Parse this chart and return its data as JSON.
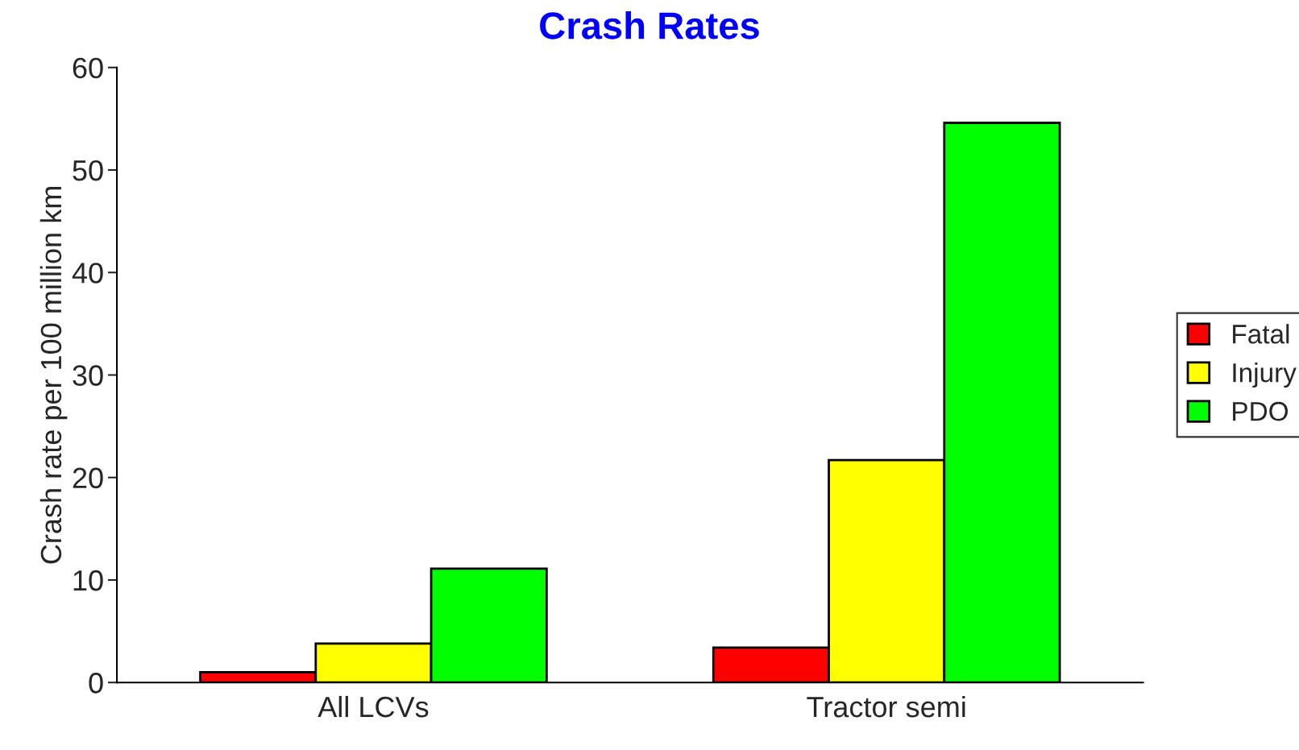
{
  "chart_data": {
    "type": "bar",
    "title": "Crash Rates",
    "ylabel": "Crash rate per 100 million km",
    "categories": [
      "All LCVs",
      "Tractor semi"
    ],
    "series": [
      {
        "name": "Fatal",
        "color": "#ff0000",
        "values": [
          1.0,
          3.4
        ]
      },
      {
        "name": "Injury",
        "color": "#ffff00",
        "values": [
          3.8,
          21.7
        ]
      },
      {
        "name": "PDO",
        "color": "#00ff00",
        "values": [
          11.1,
          54.6
        ]
      }
    ],
    "ylim": [
      0,
      60
    ],
    "yticks": [
      0,
      10,
      20,
      30,
      40,
      50,
      60
    ],
    "grid": false,
    "legend": "right"
  }
}
